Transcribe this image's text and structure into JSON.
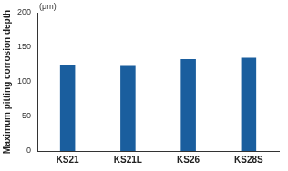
{
  "chart_data": {
    "type": "bar",
    "y_label": "Maximum pitting corrosion depth",
    "annotations": [
      "(μm)"
    ],
    "categories": [
      "KS21",
      "KS21L",
      "KS26",
      "KS28S"
    ],
    "values": [
      125,
      123,
      133,
      135
    ],
    "color": "#1a5e9e",
    "ylim": [
      0,
      200
    ],
    "yticks": [
      0,
      50,
      100,
      150,
      200
    ],
    "grid": false
  }
}
